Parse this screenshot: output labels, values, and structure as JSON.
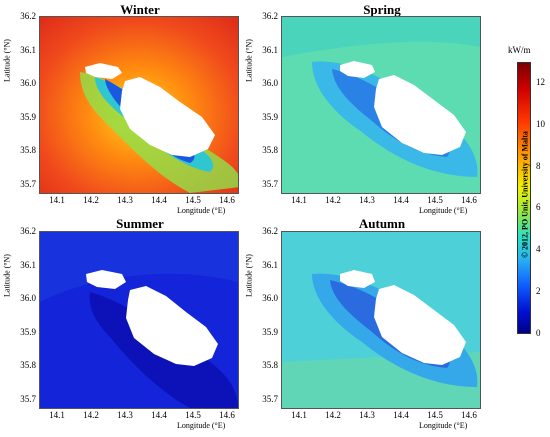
{
  "panels": [
    {
      "id": "winter",
      "title": "Winter",
      "xlabel": "Longitude (°E)",
      "ylabel": "Latitude (°N)"
    },
    {
      "id": "spring",
      "title": "Spring",
      "xlabel": "Longitude (°E)",
      "ylabel": "Latitude (°N)"
    },
    {
      "id": "summer",
      "title": "Summer",
      "xlabel": "Longitude (°E)",
      "ylabel": "Latitude (°N)"
    },
    {
      "id": "autumn",
      "title": "Autumn",
      "xlabel": "Longitude (°E)",
      "ylabel": "Latitude (°N)"
    }
  ],
  "yticks": [
    "36.2",
    "36.1",
    "36.0",
    "35.9",
    "35.8",
    "35.7"
  ],
  "xticks": [
    "14.1",
    "14.2",
    "14.3",
    "14.4",
    "14.5",
    "14.6"
  ],
  "colorbar": {
    "unit": "kW/m",
    "ticks": [
      "12",
      "10",
      "8",
      "6",
      "4",
      "2",
      "0"
    ],
    "min": 0,
    "max": 13
  },
  "credit": "© 2012, PO Unit, University of Malta",
  "colors": {
    "winter_sea": "#ee4a1c",
    "spring_sea": "#4fd3b6",
    "summer_sea": "#1020d8",
    "autumn_sea": "#47c6e6",
    "land": "#ffffff"
  }
}
